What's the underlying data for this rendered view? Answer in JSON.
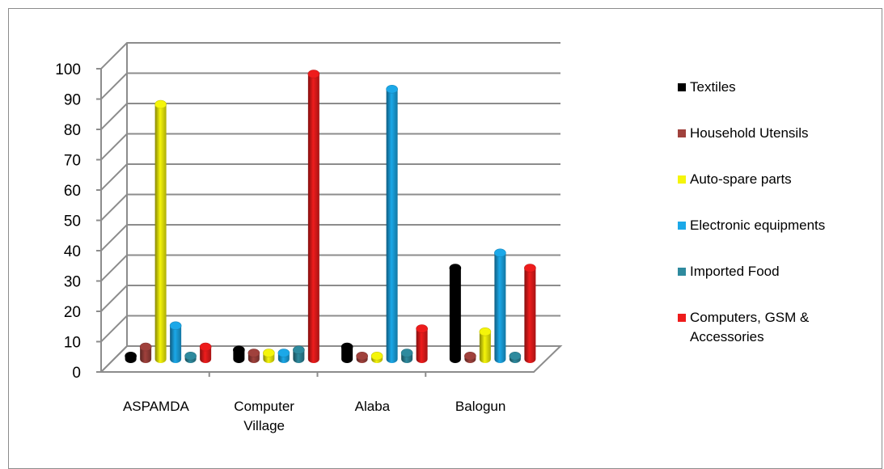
{
  "chart_data": {
    "type": "bar",
    "title": "",
    "xlabel": "",
    "ylabel": "",
    "ylim": [
      0,
      100
    ],
    "yticks": [
      "0",
      "10",
      "20",
      "30",
      "40",
      "50",
      "60",
      "70",
      "80",
      "90",
      "100"
    ],
    "grid": true,
    "legend_position": "right",
    "categories": [
      "ASPAMDA",
      "Computer\nVillage",
      "Alaba",
      "Balogun"
    ],
    "series": [
      {
        "name": "Textiles",
        "color": "#000000",
        "values": [
          1,
          3,
          4,
          30
        ]
      },
      {
        "name": "Household Utensils",
        "color": "#a0413c",
        "values": [
          4,
          2,
          1,
          1
        ]
      },
      {
        "name": "Auto-spare parts",
        "color": "#f5f50a",
        "values": [
          84,
          2,
          1,
          9
        ]
      },
      {
        "name": "Electronic equipments",
        "color": "#1ba8e8",
        "values": [
          11,
          2,
          89,
          35
        ]
      },
      {
        "name": "Imported Food",
        "color": "#2e8a9e",
        "values": [
          1,
          3,
          2,
          1
        ]
      },
      {
        "name": "Computers, GSM &\nAccessories",
        "color": "#ee1c1c",
        "values": [
          4,
          94,
          10,
          30
        ]
      }
    ]
  }
}
